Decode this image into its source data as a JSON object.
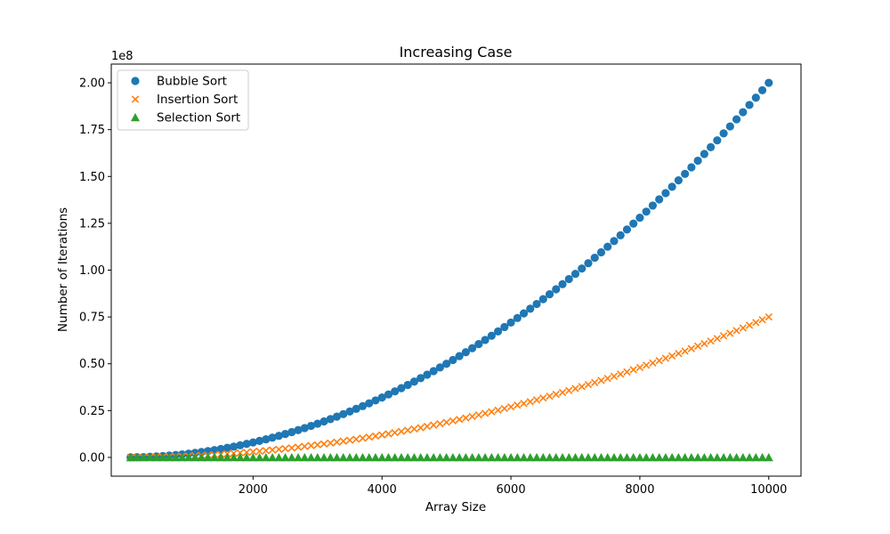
{
  "chart_data": {
    "type": "scatter",
    "title": "Increasing Case",
    "xlabel": "Array Size",
    "ylabel": "Number of Iterations",
    "y_scale_label": "1e8",
    "xlim": [
      -200,
      10500
    ],
    "ylim": [
      -0.1,
      2.1
    ],
    "y_scale_factor": 100000000,
    "x_ticks": [
      {
        "value": 2000,
        "label": "2000"
      },
      {
        "value": 4000,
        "label": "4000"
      },
      {
        "value": 6000,
        "label": "6000"
      },
      {
        "value": 8000,
        "label": "8000"
      },
      {
        "value": 10000,
        "label": "10000"
      }
    ],
    "y_ticks": [
      {
        "value": 0.0,
        "label": "0.00"
      },
      {
        "value": 0.25,
        "label": "0.25"
      },
      {
        "value": 0.5,
        "label": "0.50"
      },
      {
        "value": 0.75,
        "label": "0.75"
      },
      {
        "value": 1.0,
        "label": "1.00"
      },
      {
        "value": 1.25,
        "label": "1.25"
      },
      {
        "value": 1.5,
        "label": "1.50"
      },
      {
        "value": 1.75,
        "label": "1.75"
      },
      {
        "value": 2.0,
        "label": "2.00"
      }
    ],
    "grid": false,
    "legend_position": "top-left",
    "x": [
      100,
      200,
      300,
      400,
      500,
      600,
      700,
      800,
      900,
      1000,
      1100,
      1200,
      1300,
      1400,
      1500,
      1600,
      1700,
      1800,
      1900,
      2000,
      2100,
      2200,
      2300,
      2400,
      2500,
      2600,
      2700,
      2800,
      2900,
      3000,
      3100,
      3200,
      3300,
      3400,
      3500,
      3600,
      3700,
      3800,
      3900,
      4000,
      4100,
      4200,
      4300,
      4400,
      4500,
      4600,
      4700,
      4800,
      4900,
      5000,
      5100,
      5200,
      5300,
      5400,
      5500,
      5600,
      5700,
      5800,
      5900,
      6000,
      6100,
      6200,
      6300,
      6400,
      6500,
      6600,
      6700,
      6800,
      6900,
      7000,
      7100,
      7200,
      7300,
      7400,
      7500,
      7600,
      7700,
      7800,
      7900,
      8000,
      8100,
      8200,
      8300,
      8400,
      8500,
      8600,
      8700,
      8800,
      8900,
      9000,
      9100,
      9200,
      9300,
      9400,
      9500,
      9600,
      9700,
      9800,
      9900,
      10000
    ],
    "series": [
      {
        "name": "Bubble Sort",
        "color": "#1f77b4",
        "marker": "circle",
        "values": [
          0.0002,
          0.0008,
          0.0018,
          0.0032,
          0.005,
          0.0072,
          0.0098,
          0.0128,
          0.0162,
          0.02,
          0.0242,
          0.0288,
          0.0338,
          0.0392,
          0.045,
          0.0512,
          0.0578,
          0.0648,
          0.0722,
          0.08,
          0.0882,
          0.0968,
          0.1058,
          0.1152,
          0.125,
          0.1352,
          0.1458,
          0.1568,
          0.1682,
          0.18,
          0.1922,
          0.2048,
          0.2178,
          0.2312,
          0.245,
          0.2592,
          0.2738,
          0.2888,
          0.3042,
          0.32,
          0.3362,
          0.3528,
          0.3698,
          0.3872,
          0.405,
          0.4232,
          0.4418,
          0.4608,
          0.4802,
          0.5,
          0.5202,
          0.5408,
          0.5618,
          0.5832,
          0.605,
          0.6272,
          0.6498,
          0.6728,
          0.6962,
          0.72,
          0.7442,
          0.7688,
          0.7938,
          0.8192,
          0.845,
          0.8712,
          0.8978,
          0.9248,
          0.9522,
          0.98,
          1.0082,
          1.0368,
          1.0658,
          1.0952,
          1.125,
          1.1552,
          1.1858,
          1.2168,
          1.2482,
          1.28,
          1.3122,
          1.3448,
          1.3778,
          1.4112,
          1.445,
          1.4792,
          1.5138,
          1.5488,
          1.5842,
          1.62,
          1.6562,
          1.6928,
          1.7298,
          1.7672,
          1.805,
          1.8432,
          1.8818,
          1.9208,
          1.9602,
          2.0
        ]
      },
      {
        "name": "Insertion Sort",
        "color": "#ff7f0e",
        "marker": "x",
        "values": [
          0.0001,
          0.0003,
          0.0007,
          0.0012,
          0.0019,
          0.0027,
          0.0037,
          0.0048,
          0.0061,
          0.0075,
          0.0091,
          0.0108,
          0.0127,
          0.0147,
          0.0169,
          0.0192,
          0.0217,
          0.0243,
          0.0271,
          0.03,
          0.0331,
          0.0363,
          0.0397,
          0.0432,
          0.0469,
          0.0507,
          0.0547,
          0.0588,
          0.0631,
          0.0675,
          0.0721,
          0.0768,
          0.0817,
          0.0867,
          0.0919,
          0.0972,
          0.1027,
          0.1083,
          0.1141,
          0.12,
          0.1261,
          0.1323,
          0.1387,
          0.1452,
          0.1519,
          0.1587,
          0.1657,
          0.1728,
          0.1801,
          0.1875,
          0.1951,
          0.2028,
          0.2107,
          0.2187,
          0.2269,
          0.2352,
          0.2437,
          0.2523,
          0.2611,
          0.27,
          0.2791,
          0.2883,
          0.2977,
          0.3072,
          0.3169,
          0.3267,
          0.3367,
          0.3468,
          0.3571,
          0.3675,
          0.3781,
          0.3888,
          0.3997,
          0.4107,
          0.4219,
          0.4332,
          0.4447,
          0.4563,
          0.4681,
          0.48,
          0.4921,
          0.5043,
          0.5167,
          0.5292,
          0.5419,
          0.5547,
          0.5677,
          0.5808,
          0.5941,
          0.6075,
          0.6211,
          0.6348,
          0.6487,
          0.6627,
          0.6769,
          0.6912,
          0.7057,
          0.7203,
          0.7351,
          0.75
        ]
      },
      {
        "name": "Selection Sort",
        "color": "#2ca02c",
        "marker": "triangle",
        "values": [
          0.0,
          0.0,
          0.0,
          0.0,
          0.0,
          0.0,
          0.0,
          0.0,
          0.0,
          0.0,
          0.0,
          0.0,
          0.0,
          0.0,
          0.0,
          0.0,
          0.0,
          0.0,
          0.0,
          0.0,
          0.0,
          0.0,
          0.0,
          0.0,
          0.0,
          0.0,
          0.0,
          0.0,
          0.0,
          0.0,
          0.0,
          0.0,
          0.0,
          0.0,
          0.0,
          0.0,
          0.0,
          0.0,
          0.0,
          0.0,
          0.0,
          0.0,
          0.0,
          0.0,
          0.0,
          0.0,
          0.0,
          0.0,
          0.0,
          0.0,
          0.0,
          0.0,
          0.0,
          0.0,
          0.0,
          0.0,
          0.0,
          0.0,
          0.0,
          0.0,
          0.0,
          0.0,
          0.0,
          0.0,
          0.0,
          0.0,
          0.0,
          0.0,
          0.0,
          0.0,
          0.0,
          0.0,
          0.0,
          0.0,
          0.0,
          0.0,
          0.0,
          0.0,
          0.0,
          0.0,
          0.0,
          0.0,
          0.0,
          0.0,
          0.0,
          0.0,
          0.0,
          0.0,
          0.0,
          0.0,
          0.0,
          0.0,
          0.0,
          0.0,
          0.0,
          0.0,
          0.0,
          0.0,
          0.0,
          0.0
        ]
      }
    ]
  }
}
